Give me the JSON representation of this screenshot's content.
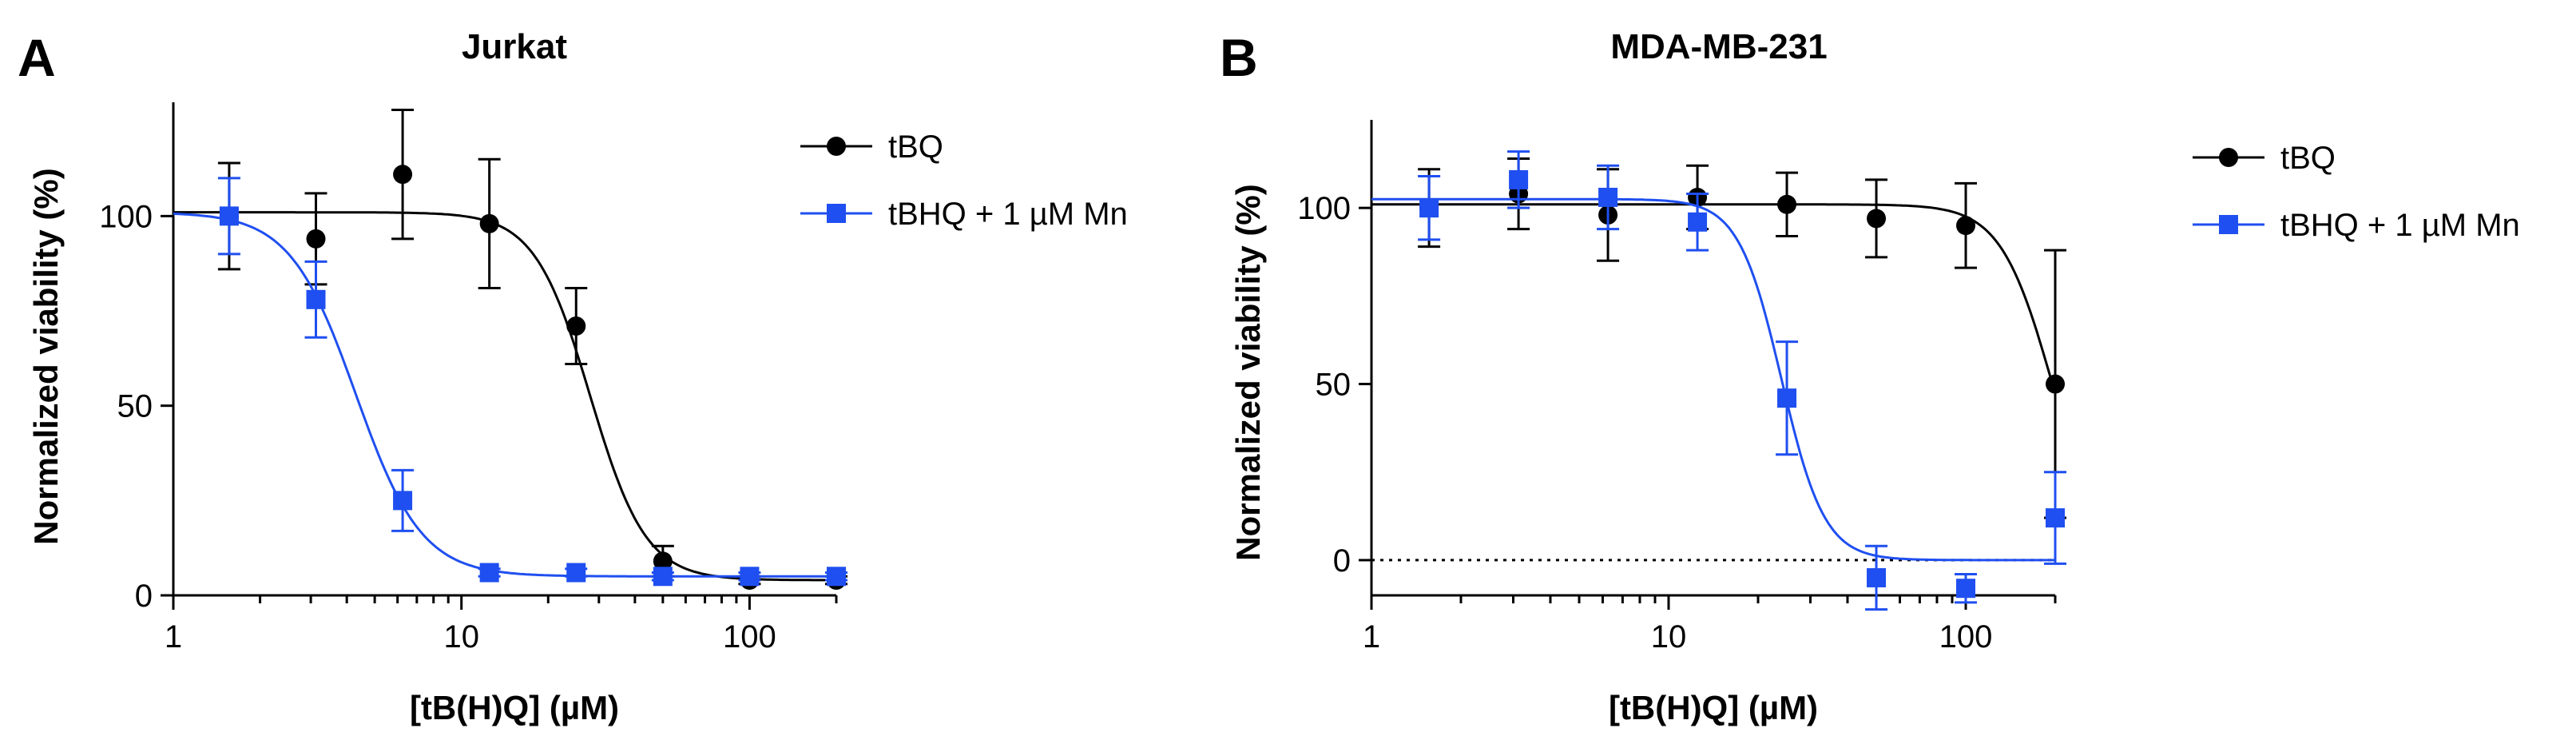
{
  "chart_data": [
    {
      "panel": "A",
      "type": "scatter",
      "title": "Jurkat",
      "xlabel": "[tB(H)Q] (µM)",
      "ylabel": "Normalized viability (%)",
      "xscale": "log",
      "xlim": [
        1,
        200
      ],
      "ylim": [
        0,
        130
      ],
      "xticks": [
        1,
        10,
        100
      ],
      "yticks": [
        0,
        50,
        100
      ],
      "legend_position": "top-right",
      "series": [
        {
          "name": "tBQ",
          "color": "#000000",
          "marker": "circle",
          "x": [
            1.5625,
            3.125,
            6.25,
            12.5,
            25,
            50,
            100,
            200
          ],
          "y": [
            100,
            94,
            111,
            98,
            71,
            9,
            4,
            4
          ],
          "err": [
            14,
            12,
            17,
            17,
            10,
            4,
            1,
            1
          ],
          "fit": {
            "top": 101,
            "bottom": 4,
            "ec50": 28,
            "hill": 4.5
          }
        },
        {
          "name": "tBHQ + 1 µM Mn",
          "color": "#1f4ff0",
          "marker": "square",
          "x": [
            1.5625,
            3.125,
            6.25,
            12.5,
            25,
            50,
            100,
            200
          ],
          "y": [
            100,
            78,
            25,
            6,
            6,
            5,
            5,
            5
          ],
          "err": [
            10,
            10,
            8,
            1,
            1,
            1,
            1,
            1
          ],
          "fit": {
            "top": 101,
            "bottom": 5,
            "ec50": 4.3,
            "hill": 3.8
          }
        }
      ]
    },
    {
      "panel": "B",
      "type": "scatter",
      "title": "MDA-MB-231",
      "xlabel": "[tB(H)Q] (µM)",
      "ylabel": "Normalized viability (%)",
      "xscale": "log",
      "xlim": [
        1,
        200
      ],
      "ylim": [
        -10,
        125
      ],
      "xticks": [
        1,
        10,
        100
      ],
      "yticks": [
        0,
        50,
        100
      ],
      "reference_line": {
        "y": 0,
        "style": "dotted"
      },
      "legend_position": "top-right",
      "series": [
        {
          "name": "tBQ",
          "color": "#000000",
          "marker": "circle",
          "x": [
            1.5625,
            3.125,
            6.25,
            12.5,
            25,
            50,
            100,
            200
          ],
          "y": [
            100,
            104,
            98,
            103,
            101,
            97,
            95,
            50
          ],
          "err": [
            11,
            10,
            13,
            9,
            9,
            11,
            12,
            38
          ],
          "fit": {
            "top": 101,
            "bottom": 0,
            "ec50": 195,
            "hill": 5
          }
        },
        {
          "name": "tBHQ + 1 µM Mn",
          "color": "#1f4ff0",
          "marker": "square",
          "x": [
            1.5625,
            3.125,
            6.25,
            12.5,
            25,
            50,
            100,
            200
          ],
          "y": [
            100,
            108,
            103,
            96,
            46,
            -5,
            -8,
            12
          ],
          "err": [
            9,
            8,
            9,
            8,
            16,
            9,
            4,
            13
          ],
          "fit": {
            "top": 102.5,
            "bottom": 0,
            "ec50": 24,
            "hill": 6
          }
        }
      ]
    }
  ]
}
